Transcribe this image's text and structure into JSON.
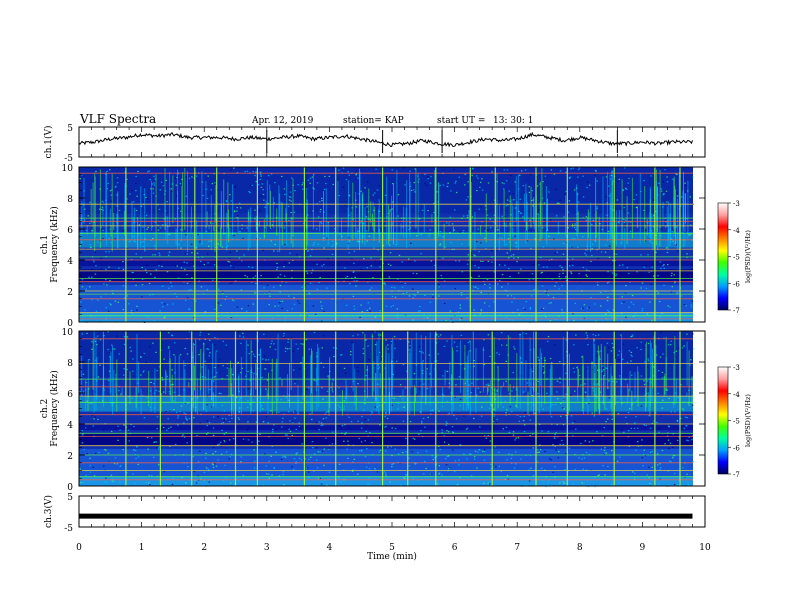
{
  "header": {
    "title": "VLF Spectra",
    "date": "Apr. 12, 2019",
    "station": "station= KAP",
    "start_label": "start  UT  =",
    "start_time": "13: 30: 1"
  },
  "colors": {
    "trace": "#000000",
    "spectrogram_base": "#1030b0",
    "colormap": [
      "#000060",
      "#0000ff",
      "#00a0ff",
      "#00ffa0",
      "#40ff00",
      "#ffff00",
      "#ff8000",
      "#ff0000",
      "#ffa0a0",
      "#ffffff"
    ]
  },
  "chart_data": [
    {
      "type": "line",
      "panel": "ch1_waveform",
      "ylabel": "ch.1(V)",
      "ylim": [
        -5,
        5
      ],
      "yticks": [
        "5",
        "-5"
      ],
      "xlim": [
        0,
        10
      ],
      "x": [
        0,
        0.25,
        0.5,
        0.75,
        1.0,
        1.25,
        1.5,
        1.75,
        2.0,
        2.25,
        2.5,
        2.75,
        3.0,
        3.25,
        3.5,
        3.75,
        4.0,
        4.25,
        4.5,
        4.75,
        5.0,
        5.25,
        5.5,
        5.75,
        6.0,
        6.25,
        6.5,
        6.75,
        7.0,
        7.25,
        7.5,
        7.75,
        8.0,
        8.25,
        8.5,
        8.75,
        9.0,
        9.25,
        9.5,
        9.8
      ],
      "y": [
        -0.5,
        0,
        1,
        1.5,
        2.5,
        2,
        2.5,
        1.5,
        1.5,
        1.5,
        1,
        1.5,
        1,
        1.5,
        2,
        1,
        1.5,
        2,
        1,
        0,
        -1,
        -0.5,
        0.5,
        -0.5,
        -1,
        0,
        1,
        0.5,
        1,
        2.5,
        1.5,
        0.5,
        1.5,
        0.5,
        -0.5,
        -0.5,
        0,
        -0.5,
        0,
        0
      ]
    },
    {
      "type": "heatmap",
      "panel": "ch1_spectrogram",
      "ylabel_channel": "ch.1",
      "ylabel": "Frequency (kHz)",
      "ylim": [
        0,
        10
      ],
      "yticks": [
        "0",
        "2",
        "4",
        "6",
        "8",
        "10"
      ],
      "xlim": [
        0,
        10
      ],
      "colorbar": {
        "label": "log(PSD)(V²/Hz)",
        "range": [
          -7,
          -3
        ],
        "ticks": [
          "-3",
          "-4",
          "-5",
          "-6",
          "-7"
        ]
      },
      "tones_khz": [
        0.2,
        0.4,
        0.6,
        1.5,
        1.8,
        2.0,
        2.6,
        2.8,
        3.3,
        4.0,
        4.2,
        4.7,
        5.3,
        5.7,
        6.2,
        6.5,
        6.7,
        7.6,
        9.6
      ],
      "impulse_times_min": [
        0.75,
        1.85,
        2.2,
        2.85,
        3.6,
        4.1,
        4.85,
        5.7,
        6.25,
        6.65,
        7.3,
        7.8,
        8.55,
        9.2,
        9.6
      ]
    },
    {
      "type": "heatmap",
      "panel": "ch2_spectrogram",
      "ylabel_channel": "ch.2",
      "ylabel": "Frequency (kHz)",
      "ylim": [
        0,
        10
      ],
      "yticks": [
        "0",
        "2",
        "4",
        "6",
        "8",
        "10"
      ],
      "xlim": [
        0,
        10
      ],
      "colorbar": {
        "label": "log(PSD)(V²/Hz)",
        "range": [
          -7,
          -3
        ],
        "ticks": [
          "-3",
          "-4",
          "-5",
          "-6",
          "-7"
        ]
      },
      "tones_khz": [
        0.4,
        0.6,
        1.0,
        1.5,
        2.0,
        2.6,
        3.2,
        3.4,
        4.0,
        4.6,
        5.4,
        5.8,
        6.4,
        6.9,
        7.9,
        9.5
      ],
      "impulse_times_min": [
        0.75,
        1.3,
        1.8,
        2.5,
        2.85,
        3.6,
        4.1,
        4.85,
        5.25,
        5.7,
        6.6,
        7.3,
        7.8,
        8.55,
        9.2,
        9.6
      ]
    },
    {
      "type": "line",
      "panel": "ch3_waveform",
      "ylabel": "ch.3(V)",
      "ylim": [
        -5,
        5
      ],
      "yticks": [
        "5",
        "-5"
      ],
      "xlim": [
        0,
        10
      ],
      "x": [
        0,
        9.8
      ],
      "y": [
        -1.5,
        -1.5
      ],
      "xlabel": "Time  (min)",
      "xticks": [
        "0",
        "1",
        "2",
        "3",
        "4",
        "5",
        "6",
        "7",
        "8",
        "9",
        "10"
      ]
    }
  ]
}
